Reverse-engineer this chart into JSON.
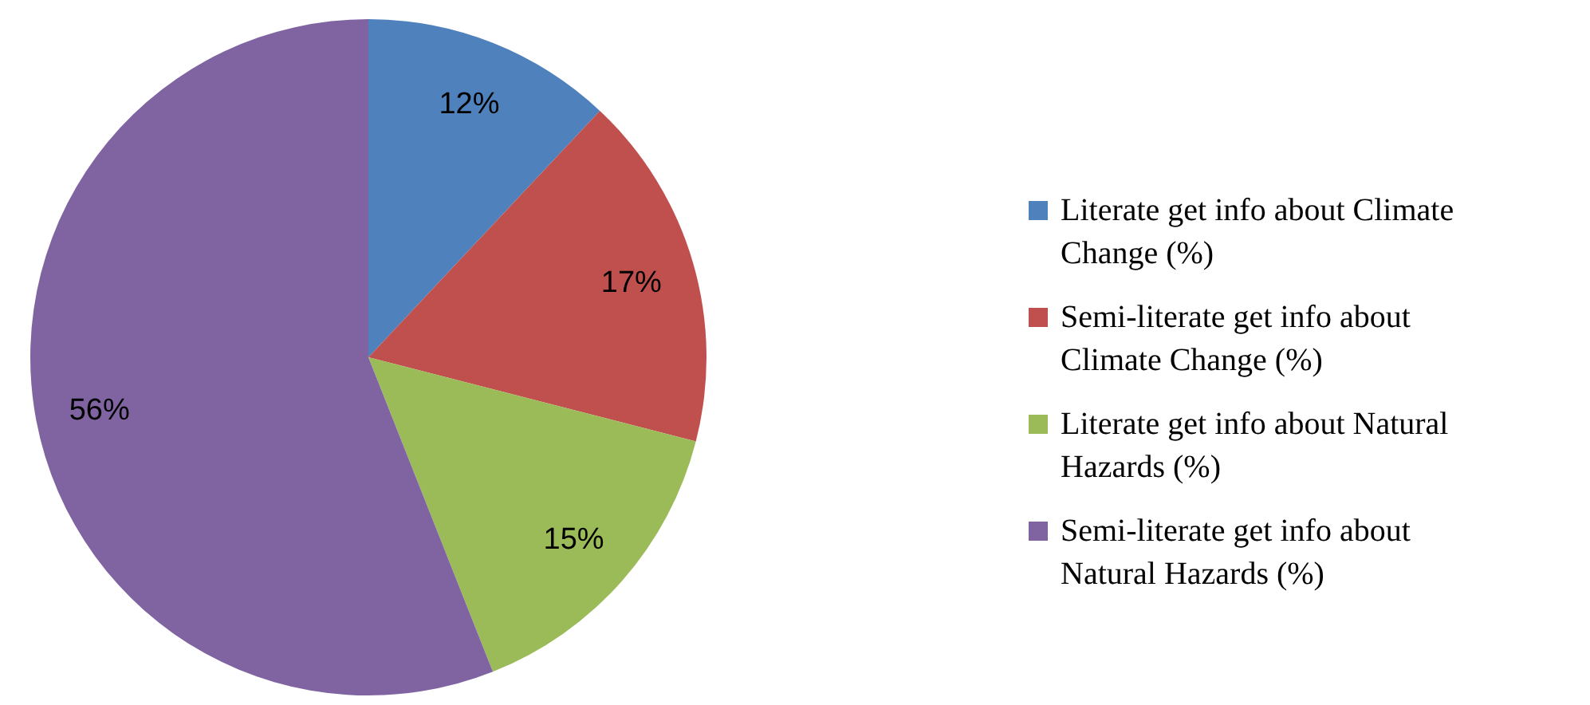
{
  "chart_data": {
    "type": "pie",
    "categories": [
      "Literate get info about Climate Change (%)",
      "Semi-literate get info about Climate Change (%)",
      "Literate get info about Natural Hazards (%)",
      "Semi-literate get info about Natural Hazards (%)"
    ],
    "values": [
      12,
      17,
      15,
      56
    ],
    "colors": [
      "#4f81bd",
      "#c0504d",
      "#9bbb59",
      "#8064a2"
    ],
    "value_labels": [
      "12%",
      "17%",
      "15%",
      "56%"
    ],
    "legend": "right"
  }
}
